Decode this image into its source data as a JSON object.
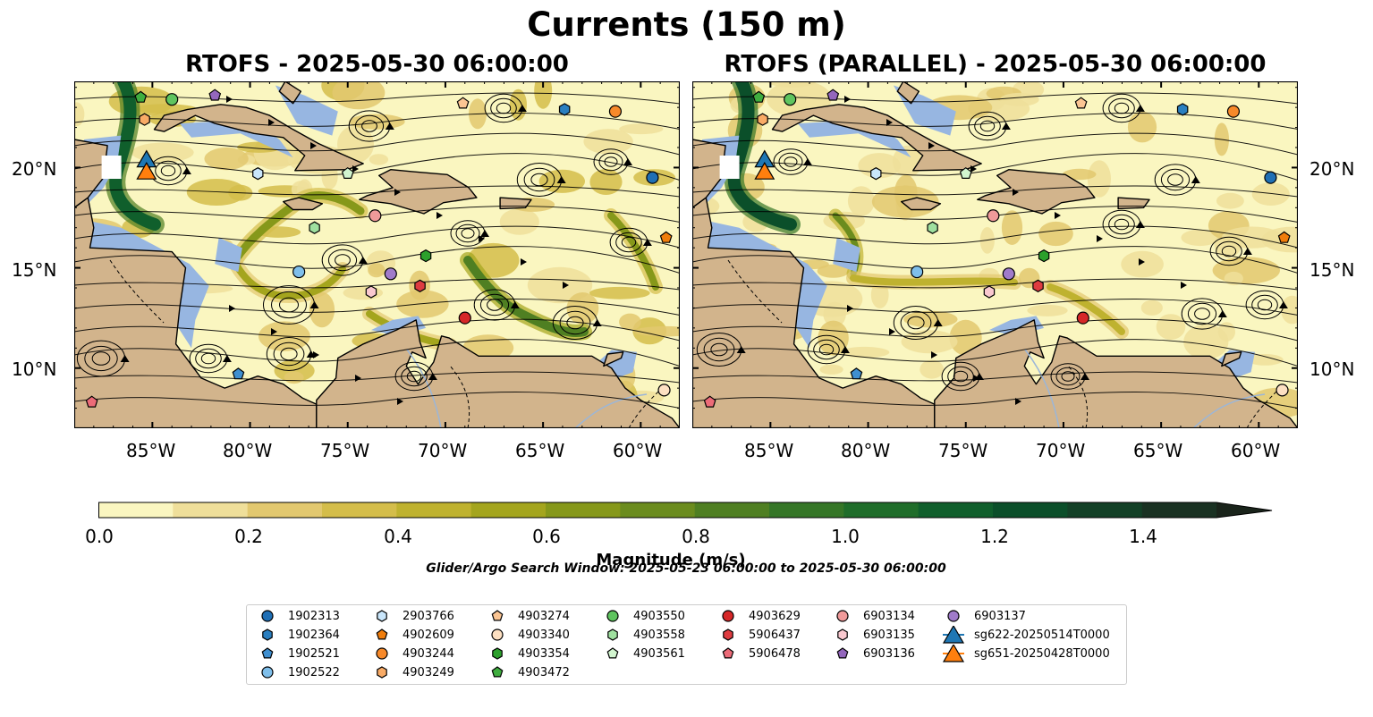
{
  "figure": {
    "title": "Currents (150 m)",
    "panels": [
      {
        "title": "RTOFS - 2025-05-30 06:00:00"
      },
      {
        "title": "RTOFS (PARALLEL) - 2025-05-30 06:00:00"
      }
    ],
    "lat_ticks": [
      "20°N",
      "15°N",
      "10°N"
    ],
    "lon_ticks": [
      "85°W",
      "80°W",
      "75°W",
      "70°W",
      "65°W",
      "60°W"
    ],
    "colors": {
      "land": "#d2b48c",
      "ocean_shelf": "#97b6e1",
      "streamlines": "#000000",
      "colormap": [
        "#faf6c0",
        "#efdf9a",
        "#e2c86f",
        "#d4bd4a",
        "#bfb22f",
        "#a4a51d",
        "#86981a",
        "#6b8c1e",
        "#4f7f22",
        "#357627",
        "#1f6d2a",
        "#105f2c",
        "#0b4f2a",
        "#134127",
        "#1a3223",
        "#1a241b"
      ]
    },
    "colorbar": {
      "label": "Magnitude (m/s)",
      "ticks": [
        "0.0",
        "0.2",
        "0.4",
        "0.6",
        "0.8",
        "1.0",
        "1.2",
        "1.4"
      ]
    },
    "search_window": "Glider/Argo Search Window: 2025-05-23 06:00:00 to 2025-05-30 06:00:00"
  },
  "legend": [
    {
      "id": "1902313",
      "marker": "circle",
      "color": "#1f6fb5"
    },
    {
      "id": "1902364",
      "marker": "hexagon",
      "color": "#2a7fc0"
    },
    {
      "id": "1902521",
      "marker": "pentagon",
      "color": "#3f8fd0"
    },
    {
      "id": "1902522",
      "marker": "circle",
      "color": "#7fbfeb"
    },
    {
      "id": "2903766",
      "marker": "hexagon",
      "color": "#c9e6fb"
    },
    {
      "id": "4902609",
      "marker": "pentagon",
      "color": "#f07d0c"
    },
    {
      "id": "4903244",
      "marker": "circle",
      "color": "#f7892a"
    },
    {
      "id": "4903249",
      "marker": "hexagon",
      "color": "#f9ab66"
    },
    {
      "id": "4903274",
      "marker": "pentagon",
      "color": "#fbc593"
    },
    {
      "id": "4903340",
      "marker": "circle",
      "color": "#fde0c2"
    },
    {
      "id": "4903354",
      "marker": "hexagon",
      "color": "#2ca02c"
    },
    {
      "id": "4903472",
      "marker": "pentagon",
      "color": "#3fae3f"
    },
    {
      "id": "4903550",
      "marker": "circle",
      "color": "#5fc45f"
    },
    {
      "id": "4903558",
      "marker": "hexagon",
      "color": "#9fe09f"
    },
    {
      "id": "4903561",
      "marker": "pentagon",
      "color": "#d2f5cf"
    },
    {
      "id": "4903629",
      "marker": "circle",
      "color": "#d62728"
    },
    {
      "id": "5906437",
      "marker": "hexagon",
      "color": "#de3b40"
    },
    {
      "id": "5906478",
      "marker": "pentagon",
      "color": "#ec6b78"
    },
    {
      "id": "6903134",
      "marker": "circle",
      "color": "#f09a9a"
    },
    {
      "id": "6903135",
      "marker": "hexagon",
      "color": "#f9c8cf"
    },
    {
      "id": "6903136",
      "marker": "pentagon",
      "color": "#9467bd"
    },
    {
      "id": "6903137",
      "marker": "circle",
      "color": "#a07bca"
    },
    {
      "id": "sg622-20250514T0000",
      "marker": "triangle",
      "color": "#1f77b4"
    },
    {
      "id": "sg651-20250428T0000",
      "marker": "triangle",
      "color": "#ff7f0e"
    }
  ],
  "platforms": [
    {
      "id": "1902313",
      "lon": -59.4,
      "lat": 19.5
    },
    {
      "id": "1902364",
      "lon": -63.9,
      "lat": 22.9
    },
    {
      "id": "1902521",
      "lon": -80.6,
      "lat": 9.7
    },
    {
      "id": "1902522",
      "lon": -77.5,
      "lat": 14.8
    },
    {
      "id": "2903766",
      "lon": -79.6,
      "lat": 19.7
    },
    {
      "id": "4902609",
      "lon": -58.7,
      "lat": 16.5
    },
    {
      "id": "4903244",
      "lon": -61.3,
      "lat": 22.8
    },
    {
      "id": "4903249",
      "lon": -85.4,
      "lat": 22.4
    },
    {
      "id": "4903274",
      "lon": -69.1,
      "lat": 23.2
    },
    {
      "id": "4903340",
      "lon": -58.8,
      "lat": 8.9
    },
    {
      "id": "4903354",
      "lon": -71.0,
      "lat": 15.6
    },
    {
      "id": "4903472",
      "lon": -85.6,
      "lat": 23.5
    },
    {
      "id": "4903550",
      "lon": -84.0,
      "lat": 23.4
    },
    {
      "id": "4903558",
      "lon": -76.7,
      "lat": 17.0
    },
    {
      "id": "4903561",
      "lon": -75.0,
      "lat": 19.7
    },
    {
      "id": "4903629",
      "lon": -69.0,
      "lat": 12.5
    },
    {
      "id": "5906437",
      "lon": -71.3,
      "lat": 14.1
    },
    {
      "id": "5906478",
      "lon": -88.1,
      "lat": 8.3
    },
    {
      "id": "6903134",
      "lon": -73.6,
      "lat": 17.6
    },
    {
      "id": "6903135",
      "lon": -73.8,
      "lat": 13.8
    },
    {
      "id": "6903136",
      "lon": -81.8,
      "lat": 23.6
    },
    {
      "id": "6903137",
      "lon": -72.8,
      "lat": 14.7
    },
    {
      "id": "sg622-20250514T0000",
      "lon": -85.3,
      "lat": 20.3
    },
    {
      "id": "sg651-20250428T0000",
      "lon": -85.3,
      "lat": 19.7
    }
  ]
}
